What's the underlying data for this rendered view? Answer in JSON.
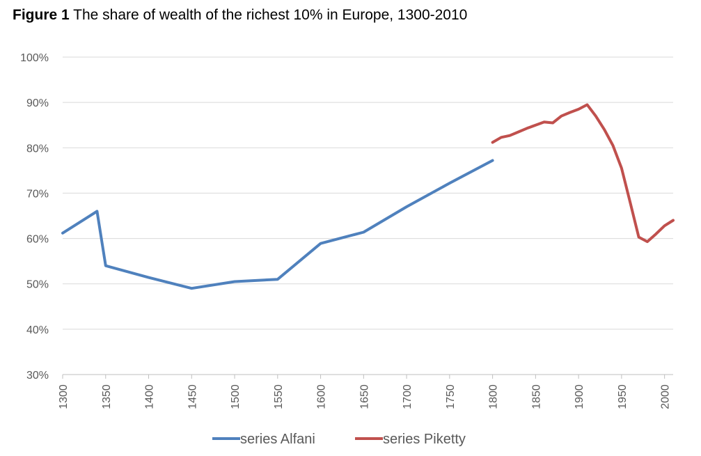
{
  "figure": {
    "label": "Figure 1",
    "title": "The share of wealth of the richest 10% in Europe, 1300-2010"
  },
  "chart_data": {
    "type": "line",
    "title": "Figure 1 The share of wealth of the richest 10% in Europe, 1300-2010",
    "xlabel": "",
    "ylabel": "",
    "xlim": [
      1300,
      2010
    ],
    "ylim": [
      30,
      100
    ],
    "x_ticks": [
      1300,
      1350,
      1400,
      1450,
      1500,
      1550,
      1600,
      1650,
      1700,
      1750,
      1800,
      1850,
      1900,
      1950,
      2000
    ],
    "y_ticks": [
      30,
      40,
      50,
      60,
      70,
      80,
      90,
      100
    ],
    "y_tick_labels": [
      "30%",
      "40%",
      "50%",
      "60%",
      "70%",
      "80%",
      "90%",
      "100%"
    ],
    "grid": true,
    "legend_position": "bottom",
    "series": [
      {
        "name": "series Alfani",
        "color": "#4f81bd",
        "points": [
          [
            1300,
            61.2
          ],
          [
            1340,
            66.0
          ],
          [
            1350,
            54.0
          ],
          [
            1400,
            51.4
          ],
          [
            1450,
            49.0
          ],
          [
            1500,
            50.5
          ],
          [
            1550,
            51.0
          ],
          [
            1600,
            58.9
          ],
          [
            1650,
            61.4
          ],
          [
            1700,
            67.0
          ],
          [
            1750,
            72.2
          ],
          [
            1800,
            77.2
          ]
        ]
      },
      {
        "name": "series Piketty",
        "color": "#c0504d",
        "points": [
          [
            1800,
            81.2
          ],
          [
            1810,
            82.3
          ],
          [
            1820,
            82.7
          ],
          [
            1830,
            83.5
          ],
          [
            1840,
            84.3
          ],
          [
            1850,
            85.0
          ],
          [
            1860,
            85.7
          ],
          [
            1870,
            85.5
          ],
          [
            1880,
            87.0
          ],
          [
            1890,
            87.8
          ],
          [
            1900,
            88.5
          ],
          [
            1910,
            89.5
          ],
          [
            1920,
            87.0
          ],
          [
            1930,
            84.0
          ],
          [
            1940,
            80.5
          ],
          [
            1950,
            75.5
          ],
          [
            1960,
            68.0
          ],
          [
            1970,
            60.3
          ],
          [
            1980,
            59.3
          ],
          [
            1990,
            61.0
          ],
          [
            2000,
            62.8
          ],
          [
            2010,
            64.0
          ]
        ]
      }
    ]
  }
}
